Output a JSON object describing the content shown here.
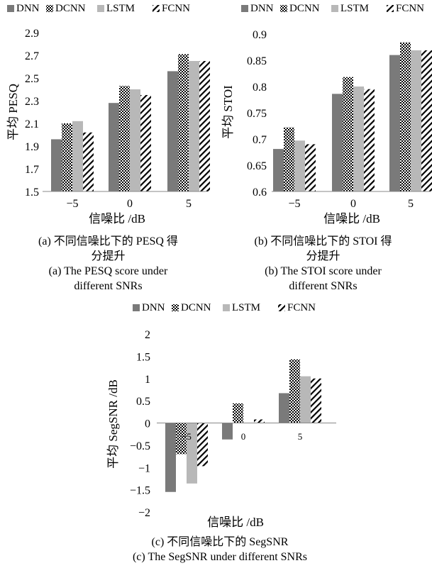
{
  "chart_data": [
    {
      "type": "bar",
      "title": "",
      "xlabel": "信噪比 /dB",
      "ylabel": "平均 PESQ",
      "categories": [
        "−5",
        "0",
        "5"
      ],
      "ylim": [
        1.5,
        2.9
      ],
      "yticks": [
        "1.5",
        "1.7",
        "1.9",
        "2.1",
        "2.3",
        "2.5",
        "2.7",
        "2.9"
      ],
      "legend_position": "top",
      "grid": false,
      "series": [
        {
          "name": "DNN",
          "values": [
            1.96,
            2.28,
            2.56
          ]
        },
        {
          "name": "DCNN",
          "values": [
            2.1,
            2.43,
            2.71
          ]
        },
        {
          "name": "LSTM",
          "values": [
            2.12,
            2.4,
            2.65
          ]
        },
        {
          "name": "FCNN",
          "values": [
            2.02,
            2.35,
            2.65
          ]
        }
      ],
      "caption_zh": [
        "(a) 不同信噪比下的 PESQ 得",
        "分提升"
      ],
      "caption_en": [
        "(a) The PESQ score under",
        "different SNRs"
      ]
    },
    {
      "type": "bar",
      "title": "",
      "xlabel": "信噪比 /dB",
      "ylabel": "平均 STOI",
      "categories": [
        "−5",
        "0",
        "5"
      ],
      "ylim": [
        0.6,
        0.9
      ],
      "yticks": [
        "0.6",
        "0.65",
        "0.7",
        "0.75",
        "0.8",
        "0.85",
        "0.9"
      ],
      "legend_position": "top",
      "grid": false,
      "series": [
        {
          "name": "DNN",
          "values": [
            0.681,
            0.786,
            0.86
          ]
        },
        {
          "name": "DCNN",
          "values": [
            0.722,
            0.818,
            0.884
          ]
        },
        {
          "name": "LSTM",
          "values": [
            0.697,
            0.8,
            0.869
          ]
        },
        {
          "name": "FCNN",
          "values": [
            0.69,
            0.795,
            0.869
          ]
        }
      ],
      "caption_zh": [
        "(b) 不同信噪比下的 STOI 得",
        "分提升"
      ],
      "caption_en": [
        "(b) The STOI score under",
        "different SNRs"
      ]
    },
    {
      "type": "bar",
      "title": "",
      "xlabel": "信噪比 /dB",
      "ylabel": "平均 SegSNR /dB",
      "categories": [
        "−5",
        "0",
        "5"
      ],
      "ylim": [
        -2,
        2
      ],
      "yticks": [
        "−2",
        "−1.5",
        "−1",
        "−0.5",
        "0",
        "0.5",
        "1",
        "1.5",
        "2"
      ],
      "legend_position": "top",
      "grid": false,
      "series": [
        {
          "name": "DNN",
          "values": [
            -1.55,
            -0.37,
            0.67
          ]
        },
        {
          "name": "DCNN",
          "values": [
            -0.7,
            0.44,
            1.43
          ]
        },
        {
          "name": "LSTM",
          "values": [
            -1.36,
            0.0,
            1.05
          ]
        },
        {
          "name": "FCNN",
          "values": [
            -0.97,
            0.08,
            1.0
          ]
        }
      ],
      "caption_zh": [
        "(c) 不同信噪比下的 SegSNR"
      ],
      "caption_en": [
        "(c) The SegSNR under different SNRs"
      ]
    }
  ],
  "styles": {
    "colors": {
      "DNN": "#7a7a7a",
      "DCNN": "checker",
      "LSTM": "#b8b8b8",
      "FCNN": "hatch"
    }
  }
}
